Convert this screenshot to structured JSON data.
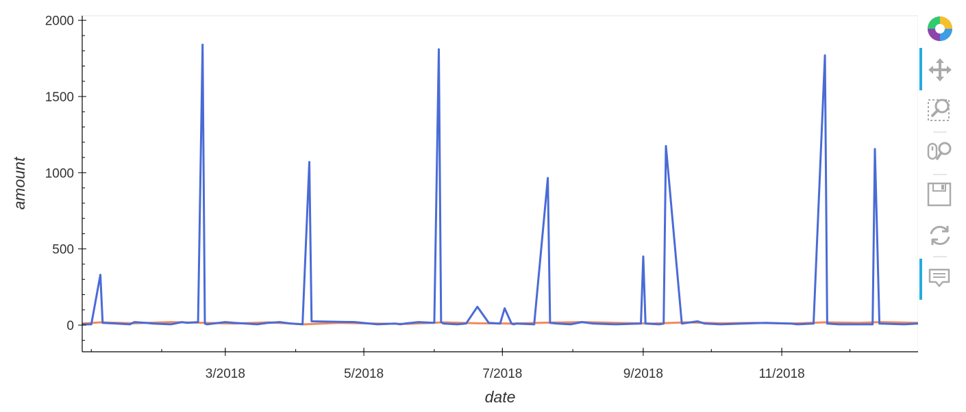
{
  "chart_data": {
    "type": "line",
    "xlabel": "date",
    "ylabel": "amount",
    "x_tick_labels": [
      "3/2018",
      "5/2018",
      "7/2018",
      "9/2018",
      "11/2018"
    ],
    "x_ticks": [
      "2018-03-01",
      "2018-05-01",
      "2018-07-01",
      "2018-09-01",
      "2018-11-01"
    ],
    "y_tick_labels": [
      "0",
      "500",
      "1000",
      "1500",
      "2000"
    ],
    "y_ticks": [
      0,
      500,
      1000,
      1500,
      2000
    ],
    "xlim": [
      "2017-12-28",
      "2018-12-31"
    ],
    "ylim": [
      -175,
      2030
    ],
    "grid": false,
    "legend": "none",
    "series": [
      {
        "color": "#4a6bd6",
        "x": [
          "2017-12-28",
          "2018-01-01",
          "2018-01-05",
          "2018-01-06",
          "2018-01-12",
          "2018-01-18",
          "2018-01-20",
          "2018-01-25",
          "2018-01-28",
          "2018-02-05",
          "2018-02-10",
          "2018-02-12",
          "2018-02-17",
          "2018-02-19",
          "2018-02-20",
          "2018-02-21",
          "2018-03-01",
          "2018-03-05",
          "2018-03-10",
          "2018-03-15",
          "2018-03-20",
          "2018-03-25",
          "2018-03-30",
          "2018-04-04",
          "2018-04-07",
          "2018-04-08",
          "2018-04-27",
          "2018-05-07",
          "2018-05-15",
          "2018-05-17",
          "2018-05-19",
          "2018-05-25",
          "2018-06-01",
          "2018-06-03",
          "2018-06-04",
          "2018-06-05",
          "2018-06-11",
          "2018-06-15",
          "2018-06-20",
          "2018-06-25",
          "2018-06-30",
          "2018-07-02",
          "2018-07-05",
          "2018-07-06",
          "2018-07-07",
          "2018-07-15",
          "2018-07-21",
          "2018-07-22",
          "2018-07-25",
          "2018-07-31",
          "2018-08-05",
          "2018-08-10",
          "2018-08-20",
          "2018-08-31",
          "2018-09-01",
          "2018-09-02",
          "2018-09-08",
          "2018-09-10",
          "2018-09-11",
          "2018-09-18",
          "2018-09-25",
          "2018-09-28",
          "2018-10-05",
          "2018-10-15",
          "2018-10-25",
          "2018-11-05",
          "2018-11-08",
          "2018-11-15",
          "2018-11-20",
          "2018-11-21",
          "2018-11-26",
          "2018-12-06",
          "2018-12-11",
          "2018-12-12",
          "2018-12-14",
          "2018-12-25",
          "2018-12-31"
        ],
        "values": [
          5,
          5,
          330,
          15,
          10,
          5,
          20,
          15,
          10,
          5,
          20,
          15,
          20,
          1840,
          10,
          5,
          20,
          15,
          10,
          5,
          15,
          20,
          10,
          5,
          1070,
          25,
          20,
          5,
          10,
          5,
          10,
          20,
          15,
          1810,
          20,
          10,
          5,
          10,
          120,
          15,
          10,
          110,
          10,
          5,
          10,
          5,
          965,
          15,
          10,
          5,
          20,
          10,
          5,
          10,
          450,
          10,
          5,
          10,
          1175,
          10,
          25,
          10,
          5,
          10,
          15,
          10,
          5,
          10,
          1770,
          10,
          5,
          5,
          5,
          1155,
          10,
          5,
          10
        ]
      },
      {
        "color": "#f08a5d",
        "x": [
          "2017-12-28",
          "2018-01-05",
          "2018-01-20",
          "2018-02-05",
          "2018-02-20",
          "2018-03-05",
          "2018-03-20",
          "2018-04-05",
          "2018-04-20",
          "2018-05-05",
          "2018-05-20",
          "2018-06-05",
          "2018-06-20",
          "2018-07-05",
          "2018-07-20",
          "2018-08-05",
          "2018-08-20",
          "2018-09-05",
          "2018-09-20",
          "2018-10-05",
          "2018-10-20",
          "2018-11-05",
          "2018-11-20",
          "2018-12-05",
          "2018-12-15",
          "2018-12-31"
        ],
        "values": [
          10,
          18,
          12,
          20,
          15,
          10,
          18,
          5,
          15,
          10,
          8,
          18,
          12,
          10,
          16,
          20,
          15,
          10,
          18,
          12,
          15,
          10,
          18,
          15,
          20,
          15
        ]
      }
    ]
  },
  "toolbar": {
    "tools": [
      {
        "name": "bokeh-logo-icon",
        "active": false
      },
      {
        "name": "pan-icon",
        "active": true
      },
      {
        "name": "box-zoom-icon",
        "active": false
      },
      {
        "name": "wheel-zoom-icon",
        "active": false
      },
      {
        "name": "save-icon",
        "active": false
      },
      {
        "name": "reset-icon",
        "active": false
      },
      {
        "name": "hover-icon",
        "active": true
      }
    ]
  }
}
